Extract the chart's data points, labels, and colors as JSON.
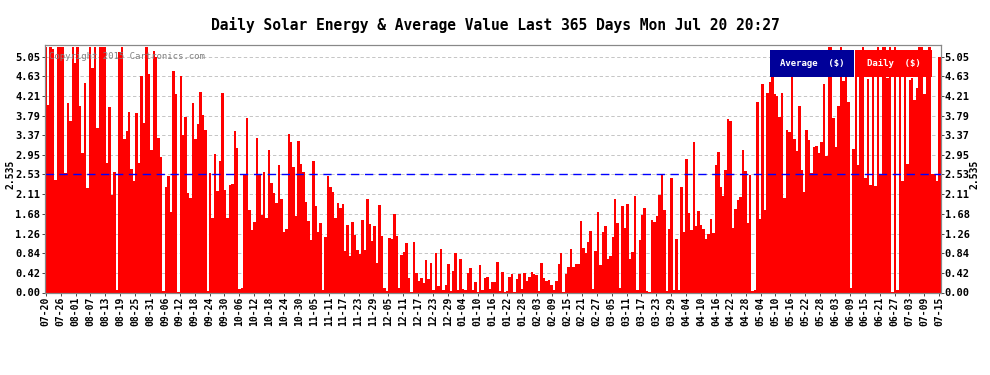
{
  "title": "Daily Solar Energy & Average Value Last 365 Days Mon Jul 20 20:27",
  "copyright": "Copyright 2015 Cartronics.com",
  "average_value": 2.535,
  "bar_color": "#ff0000",
  "average_line_color": "#0000ff",
  "background_color": "#ffffff",
  "grid_color": "#bbbbbb",
  "yticks": [
    0.0,
    0.42,
    0.84,
    1.26,
    1.68,
    2.11,
    2.53,
    2.95,
    3.37,
    3.79,
    4.21,
    4.63,
    5.05
  ],
  "ylim": [
    0.0,
    5.3
  ],
  "legend_avg_color": "#000099",
  "legend_daily_color": "#ff0000",
  "legend_avg_text": "Average  ($)",
  "legend_daily_text": "Daily  ($)",
  "xtick_labels": [
    "07-20",
    "07-26",
    "08-01",
    "08-07",
    "08-13",
    "08-19",
    "08-25",
    "08-31",
    "09-06",
    "09-12",
    "09-18",
    "09-24",
    "09-30",
    "10-06",
    "10-12",
    "10-18",
    "10-24",
    "10-30",
    "11-05",
    "11-11",
    "11-17",
    "11-23",
    "11-29",
    "12-05",
    "12-11",
    "12-17",
    "12-23",
    "12-29",
    "01-04",
    "01-10",
    "01-16",
    "01-22",
    "01-28",
    "02-03",
    "02-09",
    "02-15",
    "02-21",
    "02-27",
    "03-05",
    "03-11",
    "03-17",
    "03-23",
    "03-29",
    "04-04",
    "04-10",
    "04-16",
    "04-22",
    "04-28",
    "05-04",
    "05-10",
    "05-16",
    "05-22",
    "05-28",
    "06-03",
    "06-09",
    "06-15",
    "06-21",
    "06-27",
    "07-03",
    "07-09",
    "07-15"
  ]
}
